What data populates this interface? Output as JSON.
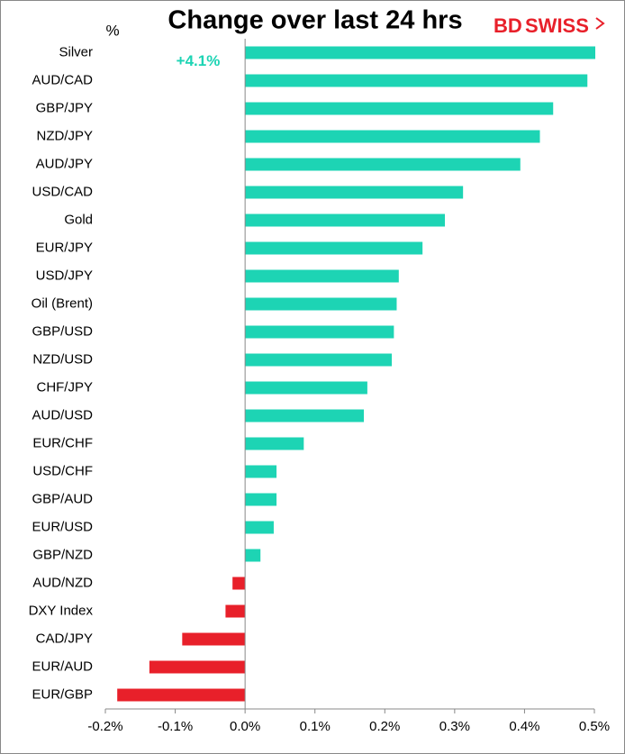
{
  "logo": {
    "part1": "BD",
    "part2": "SWISS"
  },
  "chart_data": {
    "type": "hbar",
    "title": "Change over last 24 hrs",
    "y_unit": "%",
    "categories": [
      "Silver",
      "AUD/CAD",
      "GBP/JPY",
      "NZD/JPY",
      "AUD/JPY",
      "USD/CAD",
      "Gold",
      "EUR/JPY",
      "USD/JPY",
      "Oil (Brent)",
      "GBP/USD",
      "NZD/USD",
      "CHF/JPY",
      "AUD/USD",
      "EUR/CHF",
      "USD/CHF",
      "GBP/AUD",
      "EUR/USD",
      "GBP/NZD",
      "AUD/NZD",
      "DXY Index",
      "CAD/JPY",
      "EUR/AUD",
      "EUR/GBP"
    ],
    "values": [
      4.1,
      0.49,
      0.441,
      0.422,
      0.394,
      0.312,
      0.286,
      0.254,
      0.22,
      0.217,
      0.213,
      0.21,
      0.175,
      0.17,
      0.084,
      0.045,
      0.045,
      0.041,
      0.022,
      -0.018,
      -0.028,
      -0.09,
      -0.137,
      -0.183
    ],
    "value_labels": [
      "+4.1%",
      null,
      null,
      null,
      null,
      null,
      null,
      null,
      null,
      null,
      null,
      null,
      null,
      null,
      null,
      null,
      null,
      null,
      null,
      null,
      null,
      null,
      null,
      null
    ],
    "positive_color": "#1dd4b4",
    "negative_color": "#e8202a",
    "xlim": [
      -0.2,
      0.5
    ],
    "xticks": [
      {
        "value": -0.2,
        "label": "-0.2%"
      },
      {
        "value": -0.1,
        "label": "-0.1%"
      },
      {
        "value": 0,
        "label": "0.0%"
      },
      {
        "value": 0.1,
        "label": "0.1%"
      },
      {
        "value": 0.2,
        "label": "0.2%"
      },
      {
        "value": 0.3,
        "label": "0.3%"
      },
      {
        "value": 0.4,
        "label": "0.4%"
      },
      {
        "value": 0.5,
        "label": "0.5%"
      }
    ]
  }
}
